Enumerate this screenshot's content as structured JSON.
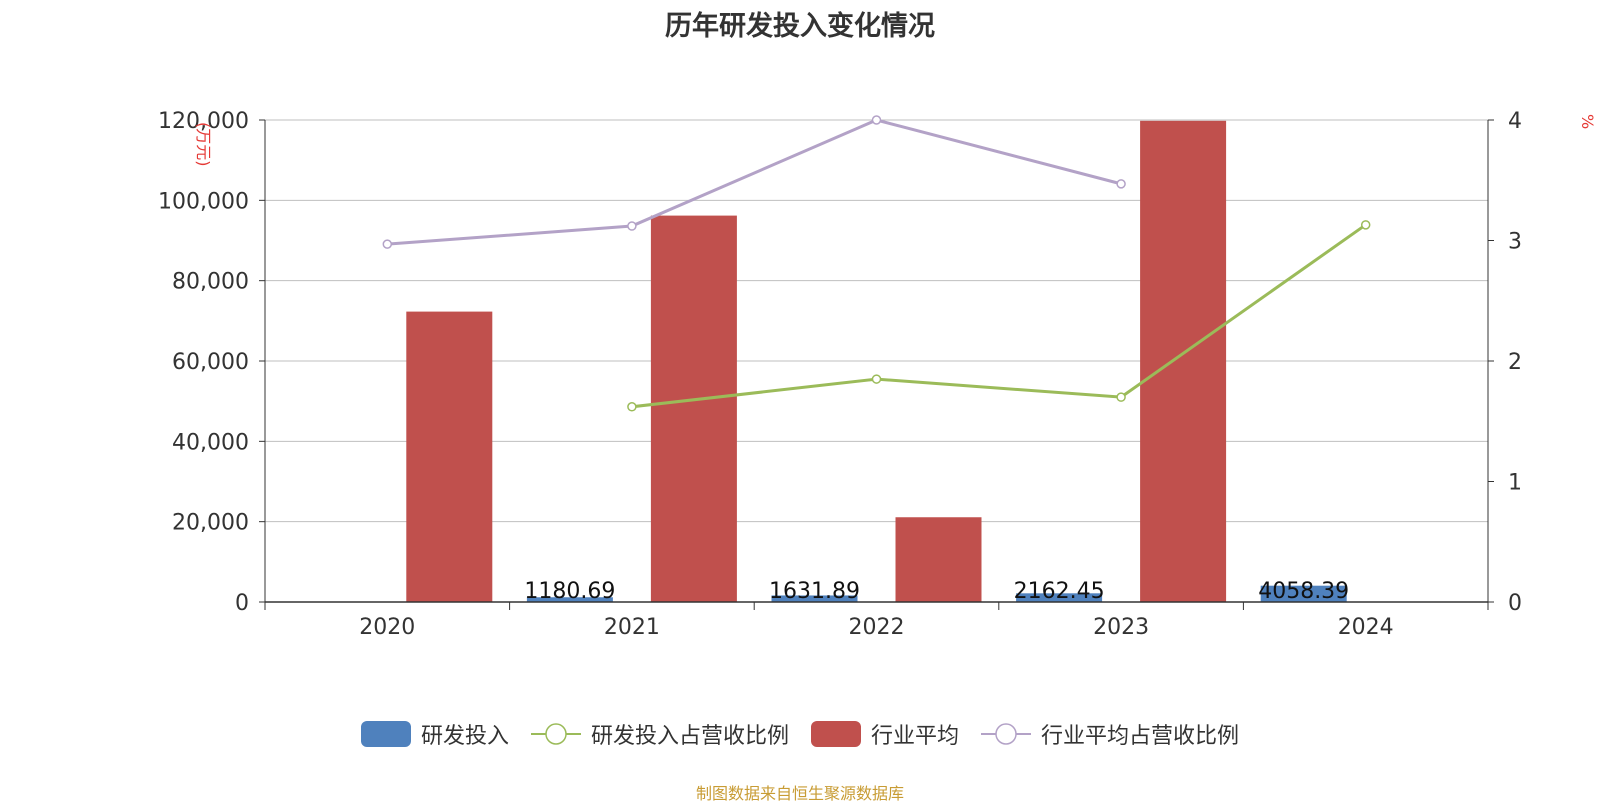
{
  "title": "历年研发投入变化情况",
  "source_note": "制图数据来自恒生聚源数据库",
  "colors": {
    "rd_bar": "#4f81bd",
    "industry_bar": "#c0504d",
    "rd_ratio_line": "#9bbb59",
    "industry_ratio_line": "#b3a2c7",
    "axis_unit_label": "#e53935",
    "grid": "#bfbfbf",
    "axis": "#333333"
  },
  "chart_data": {
    "type": "bar",
    "categories": [
      "2020",
      "2021",
      "2022",
      "2023",
      "2024"
    ],
    "left_axis": {
      "unit_label": "(万元)",
      "ylim": [
        0,
        120000
      ],
      "ticks": [
        "0",
        "20,000",
        "40,000",
        "60,000",
        "80,000",
        "100,000",
        "120,000"
      ]
    },
    "right_axis": {
      "unit_label": "%",
      "ylim": [
        0,
        4
      ],
      "ticks": [
        "0",
        "1",
        "2",
        "3",
        "4"
      ]
    },
    "grid": true,
    "legend_position": "bottom",
    "series": [
      {
        "name": "研发投入",
        "type": "bar",
        "axis": "left",
        "color_key": "rd_bar",
        "values": [
          null,
          1180.69,
          1631.89,
          2162.45,
          4058.39
        ],
        "labels": [
          "",
          "1180.69",
          "1631.89",
          "2162.45",
          "4058.39"
        ]
      },
      {
        "name": "研发投入占营收比例",
        "type": "line",
        "axis": "right",
        "color_key": "rd_ratio_line",
        "values": [
          null,
          1.62,
          1.85,
          1.7,
          3.13
        ]
      },
      {
        "name": "行业平均",
        "type": "bar",
        "axis": "left",
        "color_key": "industry_bar",
        "values": [
          72300,
          96200,
          21100,
          119800,
          null
        ]
      },
      {
        "name": "行业平均占营收比例",
        "type": "line",
        "axis": "right",
        "color_key": "industry_ratio_line",
        "values": [
          2.97,
          3.12,
          4.0,
          3.47,
          null
        ]
      }
    ]
  }
}
